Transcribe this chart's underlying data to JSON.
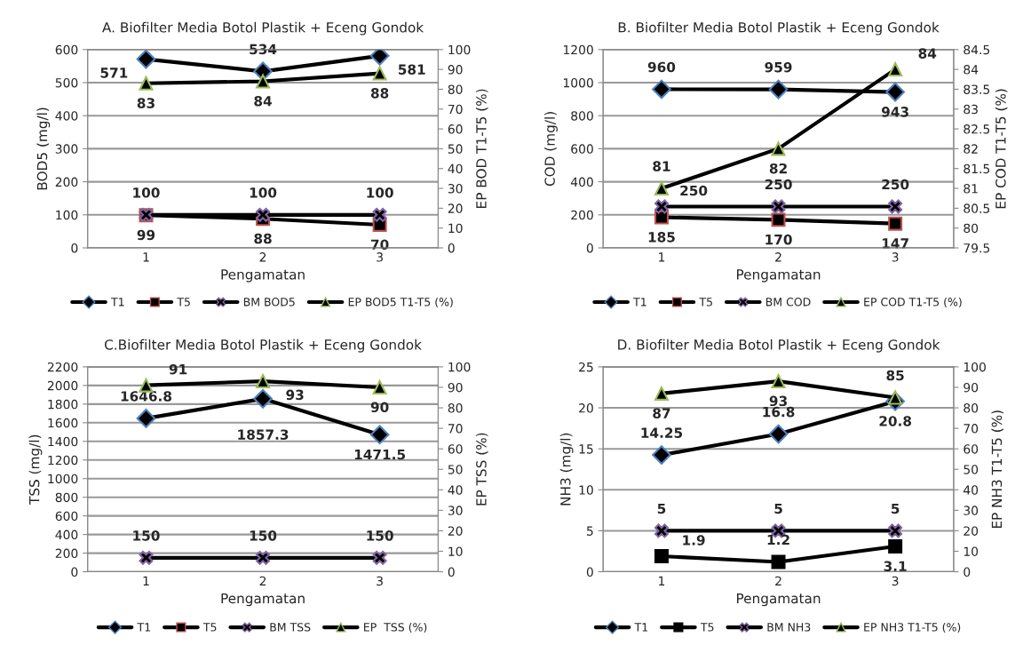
{
  "chart_data": [
    {
      "type": "line",
      "title": "A. Biofilter Media Botol Plastik + Eceng Gondok",
      "xlabel": "Pengamatan",
      "ylabel": "BOD5 (mg/l)",
      "y2label": "EP BOD T1-T5 (%)",
      "categories": [
        "1",
        "2",
        "3"
      ],
      "ylim": [
        0,
        600
      ],
      "yticks": [
        0,
        100,
        200,
        300,
        400,
        500,
        600
      ],
      "y2lim": [
        0,
        100
      ],
      "y2ticks": [
        0,
        10,
        20,
        30,
        40,
        50,
        60,
        70,
        80,
        90,
        100
      ],
      "grid": "y",
      "legend": "bottom",
      "data_labels": true,
      "series": [
        {
          "name": "T1",
          "color": "#4f81bd",
          "marker": "diamond",
          "values": [
            571,
            534,
            581
          ]
        },
        {
          "name": "T5",
          "color": "#c0504d",
          "marker": "square",
          "values": [
            99,
            88,
            70
          ]
        },
        {
          "name": "BM BOD5",
          "color": "#8064a2",
          "marker": "cross",
          "values": [
            100,
            100,
            100
          ]
        },
        {
          "name": "EP BOD5 T1-T5 (%)",
          "color": "#9bbb59",
          "marker": "triangle",
          "axis": "y2",
          "values": [
            83,
            84,
            88
          ]
        }
      ]
    },
    {
      "type": "line",
      "title": "B. Biofilter Media Botol Plastik + Eceng Gondok",
      "xlabel": "Pengamatan",
      "ylabel": "COD (mg/l)",
      "y2label": "EP COD T1-T5 (%)",
      "categories": [
        "1",
        "2",
        "3"
      ],
      "ylim": [
        0,
        1200
      ],
      "yticks": [
        0,
        200,
        400,
        600,
        800,
        1000,
        1200
      ],
      "y2lim": [
        79.5,
        84.5
      ],
      "y2ticks": [
        79.5,
        80,
        80.5,
        81,
        81.5,
        82,
        82.5,
        83,
        83.5,
        84,
        84.5
      ],
      "grid": "y",
      "legend": "bottom",
      "data_labels": true,
      "series": [
        {
          "name": "T1",
          "color": "#4f81bd",
          "marker": "diamond",
          "values": [
            960,
            959,
            943
          ]
        },
        {
          "name": "T5",
          "color": "#c0504d",
          "marker": "square",
          "values": [
            185,
            170,
            147
          ]
        },
        {
          "name": "BM COD",
          "color": "#8064a2",
          "marker": "cross",
          "values": [
            250,
            250,
            250
          ]
        },
        {
          "name": "EP COD T1-T5 (%)",
          "color": "#9bbb59",
          "marker": "triangle",
          "axis": "y2",
          "values": [
            81,
            82,
            84
          ]
        }
      ]
    },
    {
      "type": "line",
      "title": "C.Biofilter Media Botol Plastik + Eceng Gondok",
      "xlabel": "Pengamatan",
      "ylabel": "TSS (mg/l)",
      "y2label": "EP TSS (%)",
      "categories": [
        "1",
        "2",
        "3"
      ],
      "ylim": [
        0,
        2200
      ],
      "yticks": [
        0,
        200,
        400,
        600,
        800,
        1000,
        1200,
        1400,
        1600,
        1800,
        2000,
        2200
      ],
      "y2lim": [
        0,
        100
      ],
      "y2ticks": [
        0,
        10,
        20,
        30,
        40,
        50,
        60,
        70,
        80,
        90,
        100
      ],
      "grid": "y",
      "legend": "bottom",
      "series": [
        {
          "name": "T1",
          "color": "#4f81bd",
          "marker": "diamond",
          "values": [
            1646.8,
            1857.3,
            1471.5
          ],
          "value_labels": [
            "1646.8",
            "1857.3",
            "1471.5"
          ]
        },
        {
          "name": "T5",
          "color": "#c0504d",
          "marker": "square",
          "values": [
            null,
            null,
            null
          ],
          "value_labels": [
            null,
            null,
            null
          ]
        },
        {
          "name": "BM TSS",
          "color": "#8064a2",
          "marker": "cross",
          "values": [
            150,
            150,
            150
          ],
          "value_labels": [
            "150",
            "150",
            "150"
          ]
        },
        {
          "name": "EP  TSS (%)",
          "color": "#9bbb59",
          "marker": "triangle",
          "axis": "y2",
          "values": [
            91,
            93,
            90
          ],
          "value_labels": [
            "91",
            "93",
            "90"
          ]
        }
      ]
    },
    {
      "type": "line",
      "title": "D. Biofilter Media Botol Plastik + Eceng Gondok",
      "xlabel": "Pengamatan",
      "ylabel": "NH3 (mg/l)",
      "y2label": "EP NH3 T1-T5 (%)",
      "categories": [
        "1",
        "2",
        "3"
      ],
      "ylim": [
        0,
        25
      ],
      "yticks": [
        0,
        5,
        10,
        15,
        20,
        25
      ],
      "y2lim": [
        0,
        100
      ],
      "y2ticks": [
        0,
        10,
        20,
        30,
        40,
        50,
        60,
        70,
        80,
        90,
        100
      ],
      "grid": "y",
      "legend": "bottom",
      "data_labels": true,
      "series": [
        {
          "name": "T1",
          "color": "#4f81bd",
          "marker": "diamond",
          "values": [
            14.25,
            16.8,
            20.8
          ]
        },
        {
          "name": "T5",
          "color": "#000000",
          "marker": "square",
          "values": [
            1.9,
            1.2,
            3.1
          ]
        },
        {
          "name": "BM NH3",
          "color": "#8064a2",
          "marker": "cross",
          "values": [
            5,
            5,
            5
          ]
        },
        {
          "name": "EP NH3 T1-T5 (%)",
          "color": "#9bbb59",
          "marker": "triangle",
          "axis": "y2",
          "values": [
            87,
            93,
            85
          ]
        }
      ]
    }
  ]
}
